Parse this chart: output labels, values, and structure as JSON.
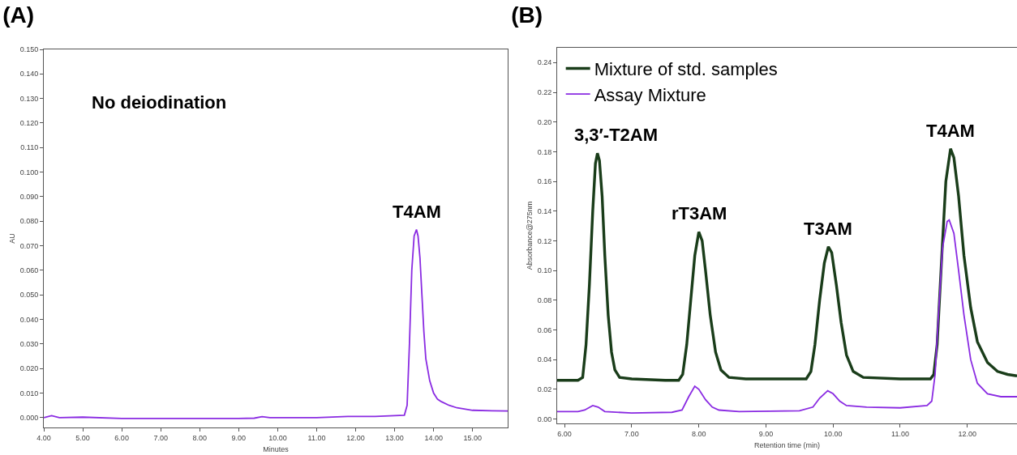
{
  "chart_data": [
    {
      "type": "line",
      "title": "(A)",
      "xlabel": "Minutes",
      "ylabel": "AU",
      "xlim": [
        4.0,
        15.9
      ],
      "ylim": [
        -0.004,
        0.15
      ],
      "xticks": [
        {
          "value": 4,
          "label": "4.00"
        },
        {
          "value": 5,
          "label": "5.00"
        },
        {
          "value": 6,
          "label": "6.00"
        },
        {
          "value": 7,
          "label": "7.00"
        },
        {
          "value": 8,
          "label": "8.00"
        },
        {
          "value": 9,
          "label": "9.00"
        },
        {
          "value": 10,
          "label": "10.00"
        },
        {
          "value": 11,
          "label": "11.00"
        },
        {
          "value": 12,
          "label": "12.00"
        },
        {
          "value": 13,
          "label": "13.00"
        },
        {
          "value": 14,
          "label": "14.00"
        },
        {
          "value": 15,
          "label": "15.00"
        }
      ],
      "yticks": [
        {
          "value": 0,
          "label": "0.000"
        },
        {
          "value": 0.01,
          "label": "0.010"
        },
        {
          "value": 0.02,
          "label": "0.020"
        },
        {
          "value": 0.03,
          "label": "0.030"
        },
        {
          "value": 0.04,
          "label": "0.040"
        },
        {
          "value": 0.05,
          "label": "0.050"
        },
        {
          "value": 0.06,
          "label": "0.060"
        },
        {
          "value": 0.07,
          "label": "0.070"
        },
        {
          "value": 0.08,
          "label": "0.080"
        },
        {
          "value": 0.09,
          "label": "0.090"
        },
        {
          "value": 0.1,
          "label": "0.100"
        },
        {
          "value": 0.11,
          "label": "0.110"
        },
        {
          "value": 0.12,
          "label": "0.120"
        },
        {
          "value": 0.13,
          "label": "0.130"
        },
        {
          "value": 0.14,
          "label": "0.140"
        },
        {
          "value": 0.15,
          "label": "0.150"
        }
      ],
      "grid": false,
      "legend": false,
      "marker": "none",
      "line_style": "solid",
      "annotations": [
        "No deiodination",
        {
          "text": "T4AM",
          "x": 13.56,
          "y": 0.0766
        }
      ],
      "series": [
        {
          "color": "#8a2be2",
          "x": [
            4.0,
            4.2,
            4.4,
            5.0,
            6.0,
            7.0,
            8.0,
            9.0,
            9.4,
            9.6,
            9.8,
            11.0,
            11.8,
            12.5,
            13.0,
            13.25,
            13.32,
            13.38,
            13.44,
            13.5,
            13.56,
            13.6,
            13.65,
            13.7,
            13.75,
            13.8,
            13.9,
            14.0,
            14.1,
            14.2,
            14.4,
            14.6,
            15.0,
            15.5,
            15.9
          ],
          "values": [
            0.0,
            0.0008,
            0.0,
            0.0002,
            -0.0003,
            -0.0003,
            -0.0003,
            -0.0003,
            -0.0002,
            0.0004,
            0.0,
            0.0,
            0.0005,
            0.0005,
            0.0008,
            0.001,
            0.005,
            0.03,
            0.06,
            0.074,
            0.0766,
            0.074,
            0.065,
            0.05,
            0.035,
            0.024,
            0.015,
            0.01,
            0.0075,
            0.0065,
            0.005,
            0.004,
            0.003,
            0.0028,
            0.0027
          ]
        }
      ]
    },
    {
      "type": "line",
      "title": "(B)",
      "xlabel": "Retention time (min)",
      "ylabel": "Absorbance@275nm",
      "xlim": [
        5.89,
        12.74
      ],
      "ylim": [
        -0.003,
        0.25
      ],
      "xticks": [
        {
          "value": 6,
          "label": "6.00"
        },
        {
          "value": 7,
          "label": "7.00"
        },
        {
          "value": 8,
          "label": "8.00"
        },
        {
          "value": 9,
          "label": "9.00"
        },
        {
          "value": 10,
          "label": "10.00"
        },
        {
          "value": 11,
          "label": "11.00"
        },
        {
          "value": 12,
          "label": "12.00"
        }
      ],
      "yticks": [
        {
          "value": 0,
          "label": "0.00"
        },
        {
          "value": 0.02,
          "label": "0.02"
        },
        {
          "value": 0.04,
          "label": "0.04"
        },
        {
          "value": 0.06,
          "label": "0.06"
        },
        {
          "value": 0.08,
          "label": "0.08"
        },
        {
          "value": 0.1,
          "label": "0.10"
        },
        {
          "value": 0.12,
          "label": "0.12"
        },
        {
          "value": 0.14,
          "label": "0.14"
        },
        {
          "value": 0.16,
          "label": "0.16"
        },
        {
          "value": 0.18,
          "label": "0.18"
        },
        {
          "value": 0.2,
          "label": "0.20"
        },
        {
          "value": 0.22,
          "label": "0.22"
        },
        {
          "value": 0.24,
          "label": "0.24"
        }
      ],
      "grid": false,
      "legend": "top left",
      "marker": "none",
      "line_style": "solid",
      "annotations": [
        {
          "text": "3,3′-T2AM",
          "x": 6.49,
          "y": 0.179
        },
        {
          "text": "rT3AM",
          "x": 8.0,
          "y": 0.126
        },
        {
          "text": "T3AM",
          "x": 9.93,
          "y": 0.116
        },
        {
          "text": "T4AM",
          "x": 11.75,
          "y": 0.182
        }
      ],
      "series": [
        {
          "name": "Mixture of std. samples",
          "color": "#1a3d1a",
          "x": [
            5.89,
            6.2,
            6.27,
            6.32,
            6.37,
            6.42,
            6.46,
            6.49,
            6.52,
            6.56,
            6.6,
            6.65,
            6.7,
            6.75,
            6.82,
            7.0,
            7.5,
            7.7,
            7.76,
            7.82,
            7.88,
            7.94,
            8.0,
            8.05,
            8.1,
            8.17,
            8.25,
            8.33,
            8.45,
            8.7,
            9.6,
            9.67,
            9.73,
            9.8,
            9.87,
            9.93,
            9.98,
            10.05,
            10.12,
            10.2,
            10.3,
            10.45,
            11.0,
            11.45,
            11.5,
            11.55,
            11.62,
            11.68,
            11.75,
            11.8,
            11.87,
            11.95,
            12.05,
            12.15,
            12.3,
            12.45,
            12.6,
            12.74
          ],
          "values": [
            0.026,
            0.026,
            0.028,
            0.05,
            0.09,
            0.14,
            0.172,
            0.179,
            0.174,
            0.15,
            0.11,
            0.07,
            0.045,
            0.033,
            0.028,
            0.027,
            0.026,
            0.026,
            0.03,
            0.05,
            0.08,
            0.11,
            0.126,
            0.12,
            0.1,
            0.07,
            0.045,
            0.033,
            0.028,
            0.027,
            0.027,
            0.032,
            0.05,
            0.08,
            0.105,
            0.116,
            0.112,
            0.09,
            0.065,
            0.043,
            0.032,
            0.028,
            0.027,
            0.027,
            0.03,
            0.05,
            0.11,
            0.16,
            0.182,
            0.176,
            0.15,
            0.11,
            0.075,
            0.052,
            0.038,
            0.032,
            0.03,
            0.029
          ]
        },
        {
          "name": "Assay Mixture",
          "color": "#8a2be2",
          "x": [
            5.89,
            6.2,
            6.3,
            6.42,
            6.5,
            6.6,
            7.0,
            7.6,
            7.75,
            7.85,
            7.94,
            8.0,
            8.1,
            8.2,
            8.3,
            8.6,
            9.5,
            9.7,
            9.8,
            9.92,
            10.0,
            10.1,
            10.2,
            10.5,
            11.0,
            11.4,
            11.47,
            11.52,
            11.57,
            11.63,
            11.7,
            11.73,
            11.8,
            11.87,
            11.95,
            12.05,
            12.15,
            12.3,
            12.5,
            12.74
          ],
          "values": [
            0.005,
            0.005,
            0.006,
            0.009,
            0.008,
            0.005,
            0.004,
            0.0045,
            0.006,
            0.015,
            0.022,
            0.02,
            0.013,
            0.008,
            0.006,
            0.005,
            0.0055,
            0.008,
            0.014,
            0.019,
            0.017,
            0.012,
            0.009,
            0.008,
            0.0075,
            0.009,
            0.012,
            0.03,
            0.07,
            0.115,
            0.133,
            0.134,
            0.125,
            0.1,
            0.07,
            0.04,
            0.024,
            0.017,
            0.015,
            0.015
          ]
        }
      ]
    }
  ]
}
